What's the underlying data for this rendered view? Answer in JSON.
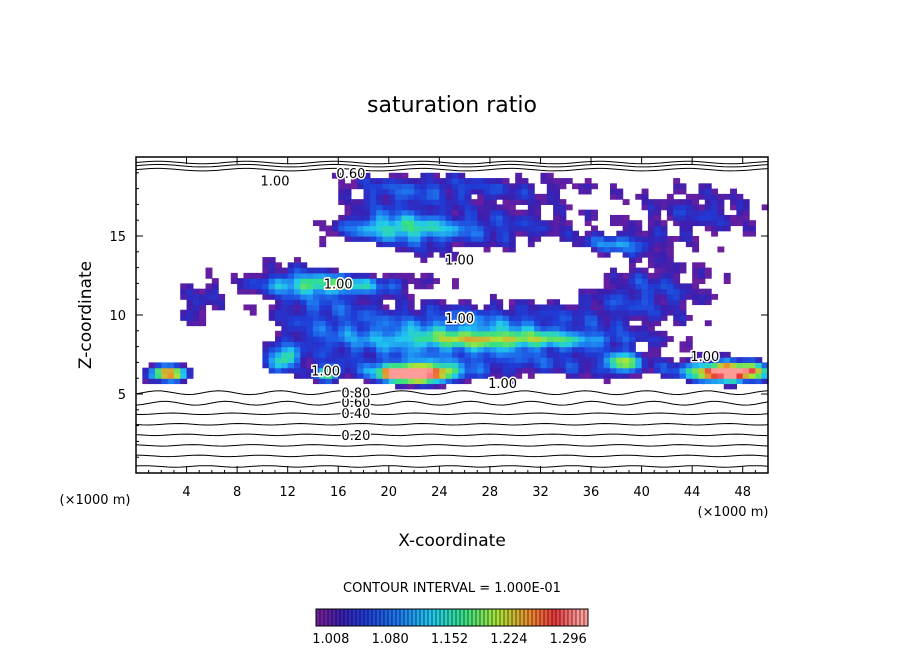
{
  "chart_data": {
    "type": "heatmap",
    "title": "saturation ratio",
    "xlabel": "X-coordinate",
    "ylabel": "Z-coordinate",
    "x_unit": "(×1000 m)",
    "xlim": [
      0,
      50
    ],
    "ylim": [
      0,
      20
    ],
    "x_ticks": [
      4,
      8,
      12,
      16,
      20,
      24,
      28,
      32,
      36,
      40,
      44,
      48
    ],
    "y_ticks": [
      5,
      10,
      15
    ],
    "contour_interval_text": "CONTOUR INTERVAL = 1.000E-01",
    "contour_labels": [
      {
        "text": "0.20",
        "x": 17.4,
        "z": 2.4
      },
      {
        "text": "0.40",
        "x": 17.4,
        "z": 3.8
      },
      {
        "text": "0.60",
        "x": 17.4,
        "z": 4.5
      },
      {
        "text": "0.80",
        "x": 17.4,
        "z": 5.1
      },
      {
        "text": "0.60",
        "x": 17.0,
        "z": 19.0
      },
      {
        "text": "1.00",
        "x": 11.0,
        "z": 18.5
      },
      {
        "text": "1.00",
        "x": 25.6,
        "z": 13.5
      },
      {
        "text": "1.00",
        "x": 16.0,
        "z": 12.0
      },
      {
        "text": "1.00",
        "x": 25.6,
        "z": 9.8
      },
      {
        "text": "1.00",
        "x": 29.0,
        "z": 5.7
      },
      {
        "text": "1.00",
        "x": 15.0,
        "z": 6.5
      },
      {
        "text": "1.00",
        "x": 45.0,
        "z": 7.4
      }
    ],
    "colorbar": {
      "labels": [
        "1.008",
        "1.080",
        "1.152",
        "1.224",
        "1.296"
      ],
      "range": [
        0.99,
        1.32
      ],
      "colors": [
        "#1a0033",
        "#2a0a80",
        "#1f23c8",
        "#1f6bff",
        "#22c8f0",
        "#32e088",
        "#b0e632",
        "#f07a2a",
        "#e0303c",
        "#ff9a98"
      ]
    },
    "colormap_stops": [
      {
        "v": 1.0,
        "color": "#6e1f9e"
      },
      {
        "v": 1.02,
        "color": "#3a1fb0"
      },
      {
        "v": 1.05,
        "color": "#1f3cd6"
      },
      {
        "v": 1.09,
        "color": "#1e7af0"
      },
      {
        "v": 1.13,
        "color": "#22c8f0"
      },
      {
        "v": 1.17,
        "color": "#36e085"
      },
      {
        "v": 1.21,
        "color": "#a9e537"
      },
      {
        "v": 1.25,
        "color": "#ef8a2e"
      },
      {
        "v": 1.28,
        "color": "#e8363e"
      },
      {
        "v": 1.31,
        "color": "#ff9c98"
      }
    ]
  }
}
